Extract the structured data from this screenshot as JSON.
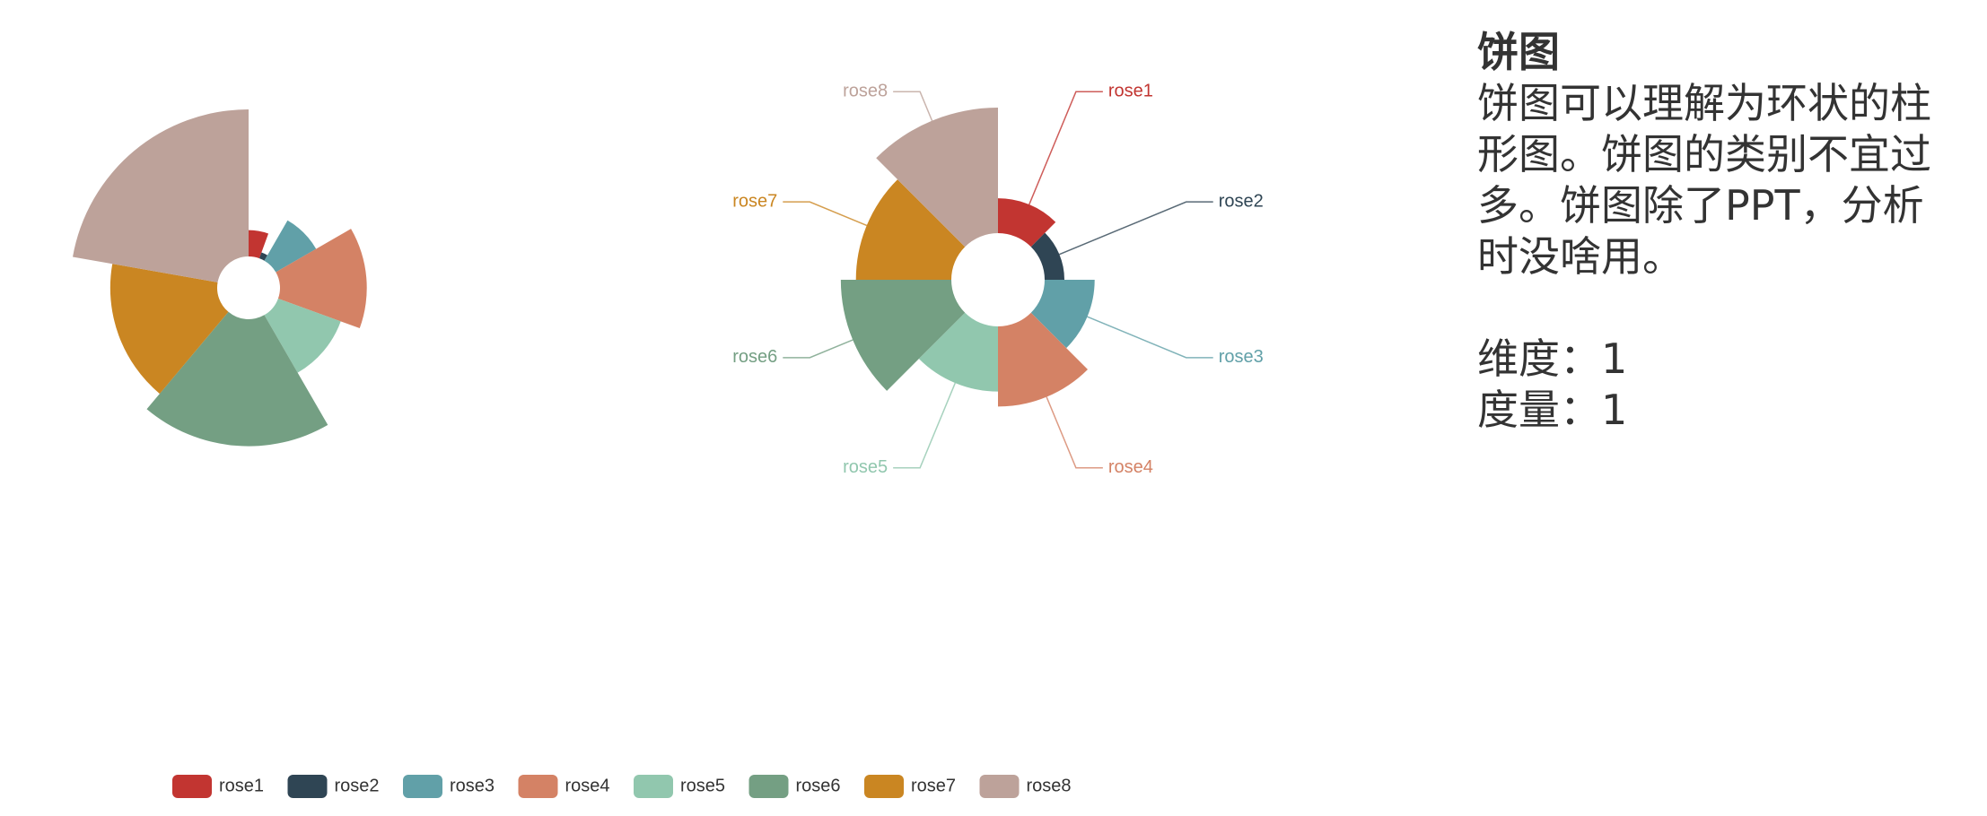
{
  "chart_data": [
    {
      "type": "pie",
      "rose_type": "radius",
      "categories": [
        "rose1",
        "rose2",
        "rose3",
        "rose4",
        "rose5",
        "rose6",
        "rose7",
        "rose8"
      ],
      "values": [
        10,
        5,
        15,
        25,
        20,
        35,
        30,
        40
      ],
      "colors": [
        "#c23531",
        "#2f4554",
        "#61a0a8",
        "#d48265",
        "#91c7ae",
        "#749f83",
        "#ca8622",
        "#bda29a"
      ],
      "labels": false,
      "legend": "bottom"
    },
    {
      "type": "pie",
      "rose_type": "area",
      "categories": [
        "rose1",
        "rose2",
        "rose3",
        "rose4",
        "rose5",
        "rose6",
        "rose7",
        "rose8"
      ],
      "values": [
        10,
        5,
        15,
        25,
        20,
        35,
        30,
        40
      ],
      "colors": [
        "#c23531",
        "#2f4554",
        "#61a0a8",
        "#d48265",
        "#91c7ae",
        "#749f83",
        "#ca8622",
        "#bda29a"
      ],
      "labels": true
    }
  ],
  "panel": {
    "title": "饼图",
    "body": "饼图可以理解为环状的柱形图。饼图的类别不宜过多。饼图除了PPT，分析时没啥用。",
    "dimension": "维度：1",
    "measure": "度量：1"
  }
}
